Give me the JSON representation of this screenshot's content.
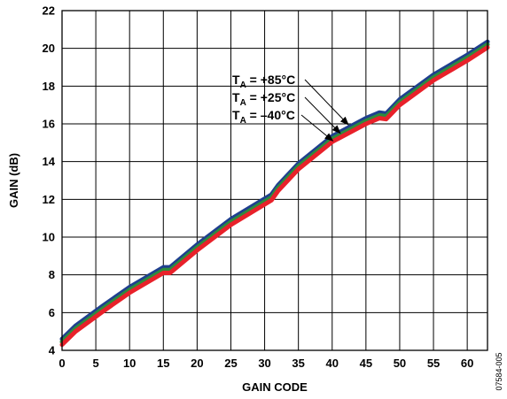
{
  "chart_data": {
    "type": "line",
    "title": "",
    "xlabel": "GAIN CODE",
    "ylabel": "GAIN (dB)",
    "xlim": [
      0,
      63
    ],
    "ylim": [
      4,
      22
    ],
    "xticks": [
      0,
      5,
      10,
      15,
      20,
      25,
      30,
      35,
      40,
      45,
      50,
      55,
      60
    ],
    "yticks": [
      4,
      6,
      8,
      10,
      12,
      14,
      16,
      18,
      20,
      22
    ],
    "grid": true,
    "series": [
      {
        "name": "TA = +85°C",
        "color": "#1f3f8f",
        "x": [
          0,
          2,
          6,
          10,
          15,
          16,
          20,
          25,
          31,
          32,
          35,
          40,
          45,
          47,
          48,
          50,
          55,
          60,
          63
        ],
        "y": [
          4.6,
          5.3,
          6.35,
          7.35,
          8.4,
          8.4,
          9.6,
          10.95,
          12.25,
          12.75,
          13.9,
          15.35,
          16.3,
          16.6,
          16.55,
          17.3,
          18.6,
          19.65,
          20.35
        ]
      },
      {
        "name": "TA = +25°C",
        "color": "#2e8b3d",
        "x": [
          0,
          2,
          6,
          10,
          15,
          16,
          20,
          25,
          31,
          32,
          35,
          40,
          45,
          47,
          48,
          50,
          55,
          60,
          63
        ],
        "y": [
          4.45,
          5.15,
          6.2,
          7.2,
          8.25,
          8.25,
          9.45,
          10.8,
          12.1,
          12.6,
          13.75,
          15.2,
          16.15,
          16.45,
          16.4,
          17.15,
          18.45,
          19.5,
          20.2
        ]
      },
      {
        "name": "TA = –40°C",
        "color": "#e8212a",
        "x": [
          0,
          2,
          6,
          10,
          15,
          16,
          20,
          25,
          31,
          32,
          35,
          40,
          45,
          47,
          48,
          50,
          55,
          60,
          63
        ],
        "y": [
          4.3,
          5.0,
          6.05,
          7.05,
          8.1,
          8.1,
          9.3,
          10.65,
          11.95,
          12.45,
          13.6,
          15.05,
          16.0,
          16.3,
          16.25,
          17.0,
          18.3,
          19.35,
          20.05
        ]
      }
    ],
    "annotations": [
      {
        "label": "T",
        "sub": "A",
        "value": " = +85°C",
        "x": 42.4,
        "y": 15.95
      },
      {
        "label": "T",
        "sub": "A",
        "value": " = +25°C",
        "x": 41.2,
        "y": 15.5
      },
      {
        "label": "T",
        "sub": "A",
        "value": " = –40°C",
        "x": 40.1,
        "y": 15.1
      }
    ],
    "figure_id": "07584-005"
  }
}
